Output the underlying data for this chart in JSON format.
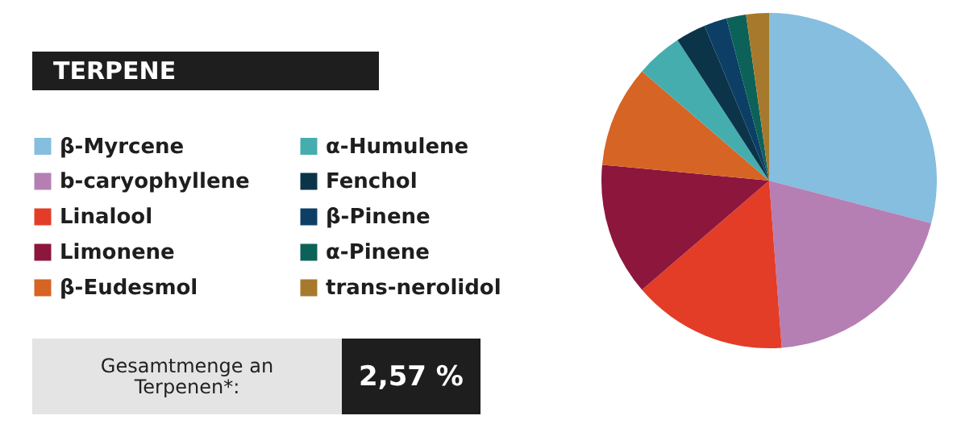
{
  "chart_data": {
    "type": "pie",
    "title": "TERPENE",
    "categories": [
      "β-Myrcene",
      "b-caryophyllene",
      "Linalool",
      "Limonene",
      "β-Eudesmol",
      "α-Humulene",
      "Fenchol",
      "β-Pinene",
      "α-Pinene",
      "trans-nerolidol"
    ],
    "values": [
      29.1,
      19.7,
      14.9,
      12.8,
      9.8,
      4.5,
      2.9,
      2.2,
      1.9,
      2.2
    ],
    "colors": [
      "#85bede",
      "#b57fb4",
      "#e33d27",
      "#8c163c",
      "#d66424",
      "#45adad",
      "#0b3448",
      "#0d3f66",
      "#0c6259",
      "#a7792d"
    ],
    "legend": "left",
    "annotations": [
      "Gesamtmenge an Terpenen*:",
      "2,57 %"
    ]
  }
}
